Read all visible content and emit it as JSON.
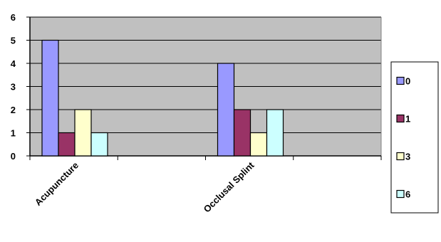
{
  "chart_data": {
    "type": "bar",
    "categories": [
      "Acupuncture",
      "Occlusal Splint"
    ],
    "series": [
      {
        "name": "0",
        "values": [
          5,
          4
        ],
        "color": "#9999ff"
      },
      {
        "name": "1",
        "values": [
          1,
          2
        ],
        "color": "#993366"
      },
      {
        "name": "3",
        "values": [
          2,
          1
        ],
        "color": "#ffffcc"
      },
      {
        "name": "6",
        "values": [
          1,
          2
        ],
        "color": "#ccffff"
      }
    ],
    "ylim": [
      0,
      6
    ],
    "yticks": [
      "0",
      "1",
      "2",
      "3",
      "4",
      "5",
      "6"
    ],
    "grid": true,
    "plot_background": "#c0c0c0",
    "legend": "right",
    "title": "",
    "xlabel": "",
    "ylabel": ""
  }
}
